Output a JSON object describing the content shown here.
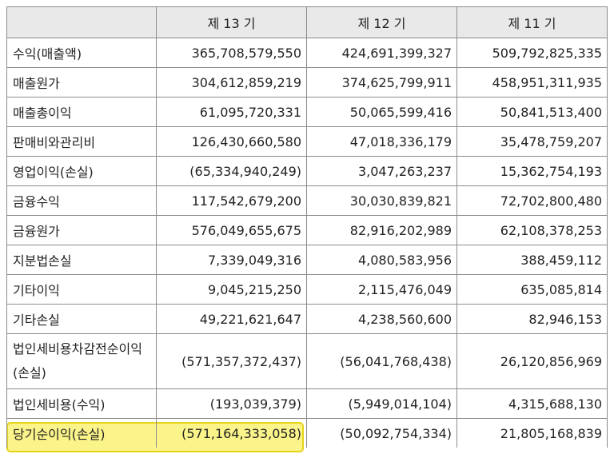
{
  "header": {
    "blank": "",
    "periods": [
      "제 13 기",
      "제 12 기",
      "제 11 기"
    ]
  },
  "rows": [
    {
      "label": "수익(매출액)",
      "values": [
        "365,708,579,550",
        "424,691,399,327",
        "509,792,825,335"
      ]
    },
    {
      "label": "매출원가",
      "values": [
        "304,612,859,219",
        "374,625,799,911",
        "458,951,311,935"
      ]
    },
    {
      "label": "매출총이익",
      "values": [
        "61,095,720,331",
        "50,065,599,416",
        "50,841,513,400"
      ]
    },
    {
      "label": "판매비와관리비",
      "values": [
        "126,430,660,580",
        "47,018,336,179",
        "35,478,759,207"
      ]
    },
    {
      "label": "영업이익(손실)",
      "values": [
        "(65,334,940,249)",
        "3,047,263,237",
        "15,362,754,193"
      ]
    },
    {
      "label": "금융수익",
      "values": [
        "117,542,679,200",
        "30,030,839,821",
        "72,702,800,480"
      ]
    },
    {
      "label": "금융원가",
      "values": [
        "576,049,655,675",
        "82,916,202,989",
        "62,108,378,253"
      ]
    },
    {
      "label": "지분법손실",
      "values": [
        "7,339,049,316",
        "4,080,583,956",
        "388,459,112"
      ]
    },
    {
      "label": "기타이익",
      "values": [
        "9,045,215,250",
        "2,115,476,049",
        "635,085,814"
      ]
    },
    {
      "label": "기타손실",
      "values": [
        "49,221,621,647",
        "4,238,560,600",
        "82,946,153"
      ]
    },
    {
      "label": "법인세비용차감전순이익(손실)",
      "values": [
        "(571,357,372,437)",
        "(56,041,768,438)",
        "26,120,856,969"
      ]
    },
    {
      "label": "법인세비용(수익)",
      "values": [
        "(193,039,379)",
        "(5,949,014,104)",
        "4,315,688,130"
      ]
    },
    {
      "label": "당기순이익(손실)",
      "values": [
        "(571,164,333,058)",
        "(50,092,754,334)",
        "21,805,168,839"
      ]
    }
  ],
  "highlight_color": "#fbf48a"
}
